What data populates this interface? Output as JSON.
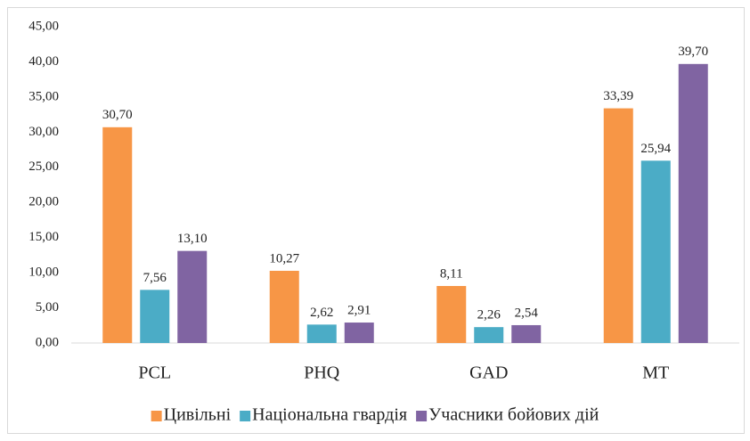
{
  "chart_data": {
    "type": "bar",
    "categories": [
      "PCL",
      "PHQ",
      "GAD",
      "MT"
    ],
    "series": [
      {
        "name": "Цивільні",
        "color": "#f79646",
        "values": [
          30.7,
          10.27,
          8.11,
          33.39
        ],
        "value_labels": [
          "30,70",
          "10,27",
          "8,11",
          "33,39"
        ]
      },
      {
        "name": "Національна гвардія",
        "color": "#4bacc6",
        "values": [
          7.56,
          2.62,
          2.26,
          25.94
        ],
        "value_labels": [
          "7,56",
          "2,62",
          "2,26",
          "25,94"
        ]
      },
      {
        "name": "Учасники бойових дій",
        "color": "#8064a2",
        "values": [
          13.1,
          2.91,
          2.54,
          39.7
        ],
        "value_labels": [
          "13,10",
          "2,91",
          "2,54",
          "39,70"
        ]
      }
    ],
    "ylim": [
      0,
      45
    ],
    "yticks": [
      {
        "value": 0,
        "label": "0,00"
      },
      {
        "value": 5,
        "label": "5,00"
      },
      {
        "value": 10,
        "label": "10,00"
      },
      {
        "value": 15,
        "label": "15,00"
      },
      {
        "value": 20,
        "label": "20,00"
      },
      {
        "value": 25,
        "label": "25,00"
      },
      {
        "value": 30,
        "label": "30,00"
      },
      {
        "value": 35,
        "label": "35,00"
      },
      {
        "value": 40,
        "label": "40,00"
      },
      {
        "value": 45,
        "label": "45,00"
      }
    ],
    "grid": false,
    "legend": "bottom"
  }
}
